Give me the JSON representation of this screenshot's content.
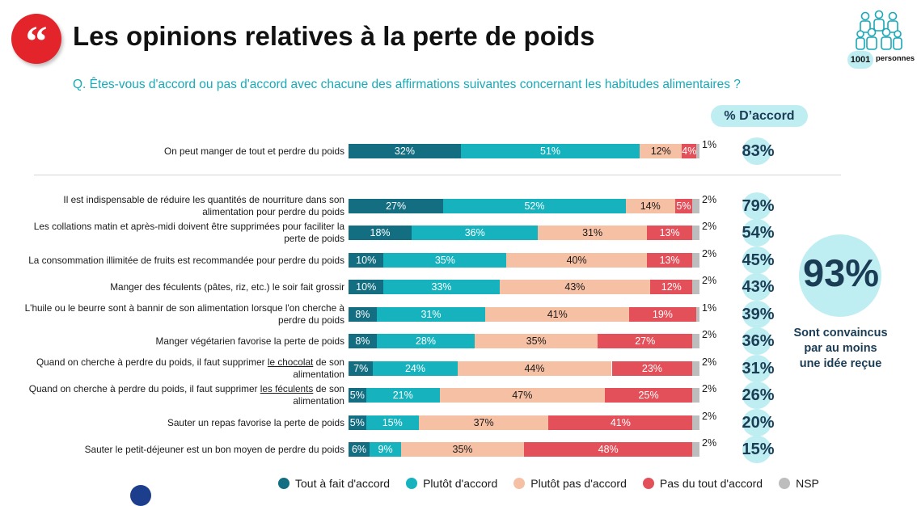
{
  "header": {
    "title": "Les opinions relatives à la perte de poids",
    "question": "Q. Êtes-vous d'accord ou pas d'accord avec chacune des affirmations suivantes concernant les habitudes alimentaires ?",
    "sample_count": "1001",
    "sample_label": "personnes",
    "quote_icon": "quote-icon",
    "people_icon": "people-group-icon"
  },
  "agree_header": "% D’accord",
  "summary": {
    "value": "93%",
    "caption_lines": [
      "Sont convaincus",
      "par au moins",
      "une idée reçue"
    ]
  },
  "colors": {
    "tout_a_fait": "#136e82",
    "plutot": "#16b3bf",
    "plutot_pas": "#f6c0a4",
    "pas_du_tout": "#e4505a",
    "nsp": "#bdbdbd",
    "accent_dark": "#1b3c55",
    "bubble": "#bfeef2",
    "brand_red": "#e3242b"
  },
  "chart_data": {
    "type": "bar",
    "orientation": "horizontal",
    "stacked": true,
    "xlim": [
      0,
      100
    ],
    "categories": [
      "On peut manger de tout et perdre du poids",
      "Il est indispensable de réduire les quantités de nourriture dans son alimentation pour perdre du poids",
      "Les collations matin et après-midi doivent être supprimées pour faciliter la perte de poids",
      "La consommation illimitée de fruits est recommandée pour perdre du poids",
      "Manger des féculents (pâtes, riz, etc.) le soir fait grossir",
      "L'huile ou le beurre sont à bannir de son alimentation lorsque l'on cherche à perdre du poids",
      "Manger végétarien favorise la perte de poids",
      "Quand on cherche à perdre du poids, il faut supprimer le chocolat de son alimentation",
      "Quand on cherche à perdre du poids, il faut supprimer les féculents de son alimentation",
      "Sauter un repas favorise la perte de poids",
      "Sauter le petit-déjeuner est un bon moyen de perdre du poids"
    ],
    "series": [
      {
        "name": "Tout à fait d'accord",
        "values": [
          32,
          27,
          18,
          10,
          10,
          8,
          8,
          7,
          5,
          5,
          6
        ]
      },
      {
        "name": "Plutôt d'accord",
        "values": [
          51,
          52,
          36,
          35,
          33,
          31,
          28,
          24,
          21,
          15,
          9
        ]
      },
      {
        "name": "Plutôt pas d'accord",
        "values": [
          12,
          14,
          31,
          40,
          43,
          41,
          35,
          44,
          47,
          37,
          35
        ]
      },
      {
        "name": "Pas du tout d'accord",
        "values": [
          4,
          5,
          13,
          13,
          12,
          19,
          27,
          23,
          25,
          41,
          48
        ]
      },
      {
        "name": "NSP",
        "values": [
          1,
          2,
          2,
          2,
          2,
          1,
          2,
          2,
          2,
          2,
          2
        ]
      }
    ],
    "agree_totals": [
      83,
      79,
      54,
      45,
      43,
      39,
      36,
      31,
      26,
      20,
      15
    ],
    "legend_position": "bottom"
  }
}
